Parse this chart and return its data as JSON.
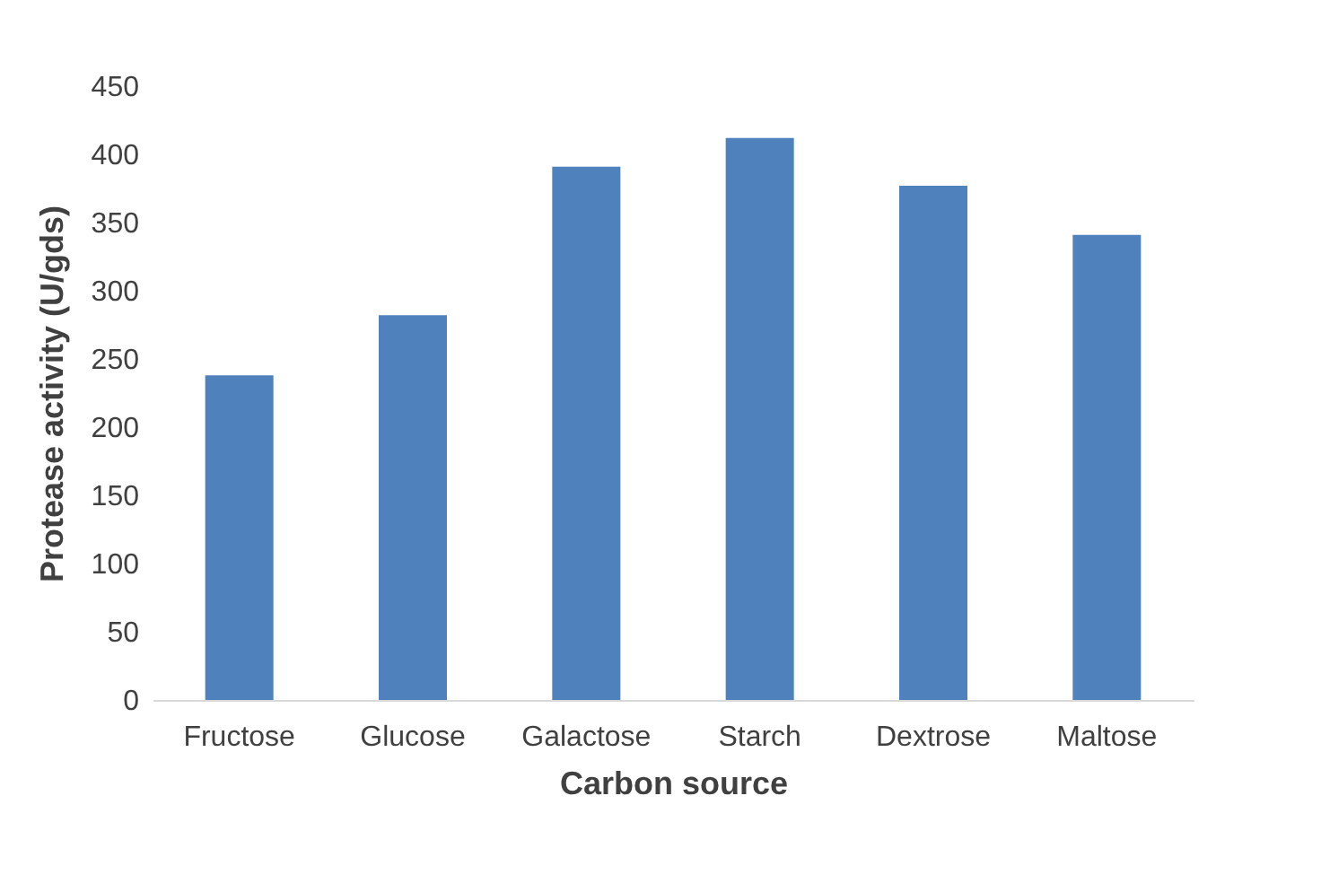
{
  "chart_data": {
    "type": "bar",
    "xlabel": "Carbon source",
    "ylabel": "Protease activity (U/gds)",
    "categories": [
      "Fructose",
      "Glucose",
      "Galactose",
      "Starch",
      "Dextrose",
      "Maltose"
    ],
    "values": [
      238,
      282,
      391,
      412,
      377,
      341
    ],
    "color": "#4f81bd",
    "ylim": [
      0,
      450
    ],
    "yticks": [
      0,
      50,
      100,
      150,
      200,
      250,
      300,
      350,
      400,
      450
    ],
    "grid": false
  }
}
